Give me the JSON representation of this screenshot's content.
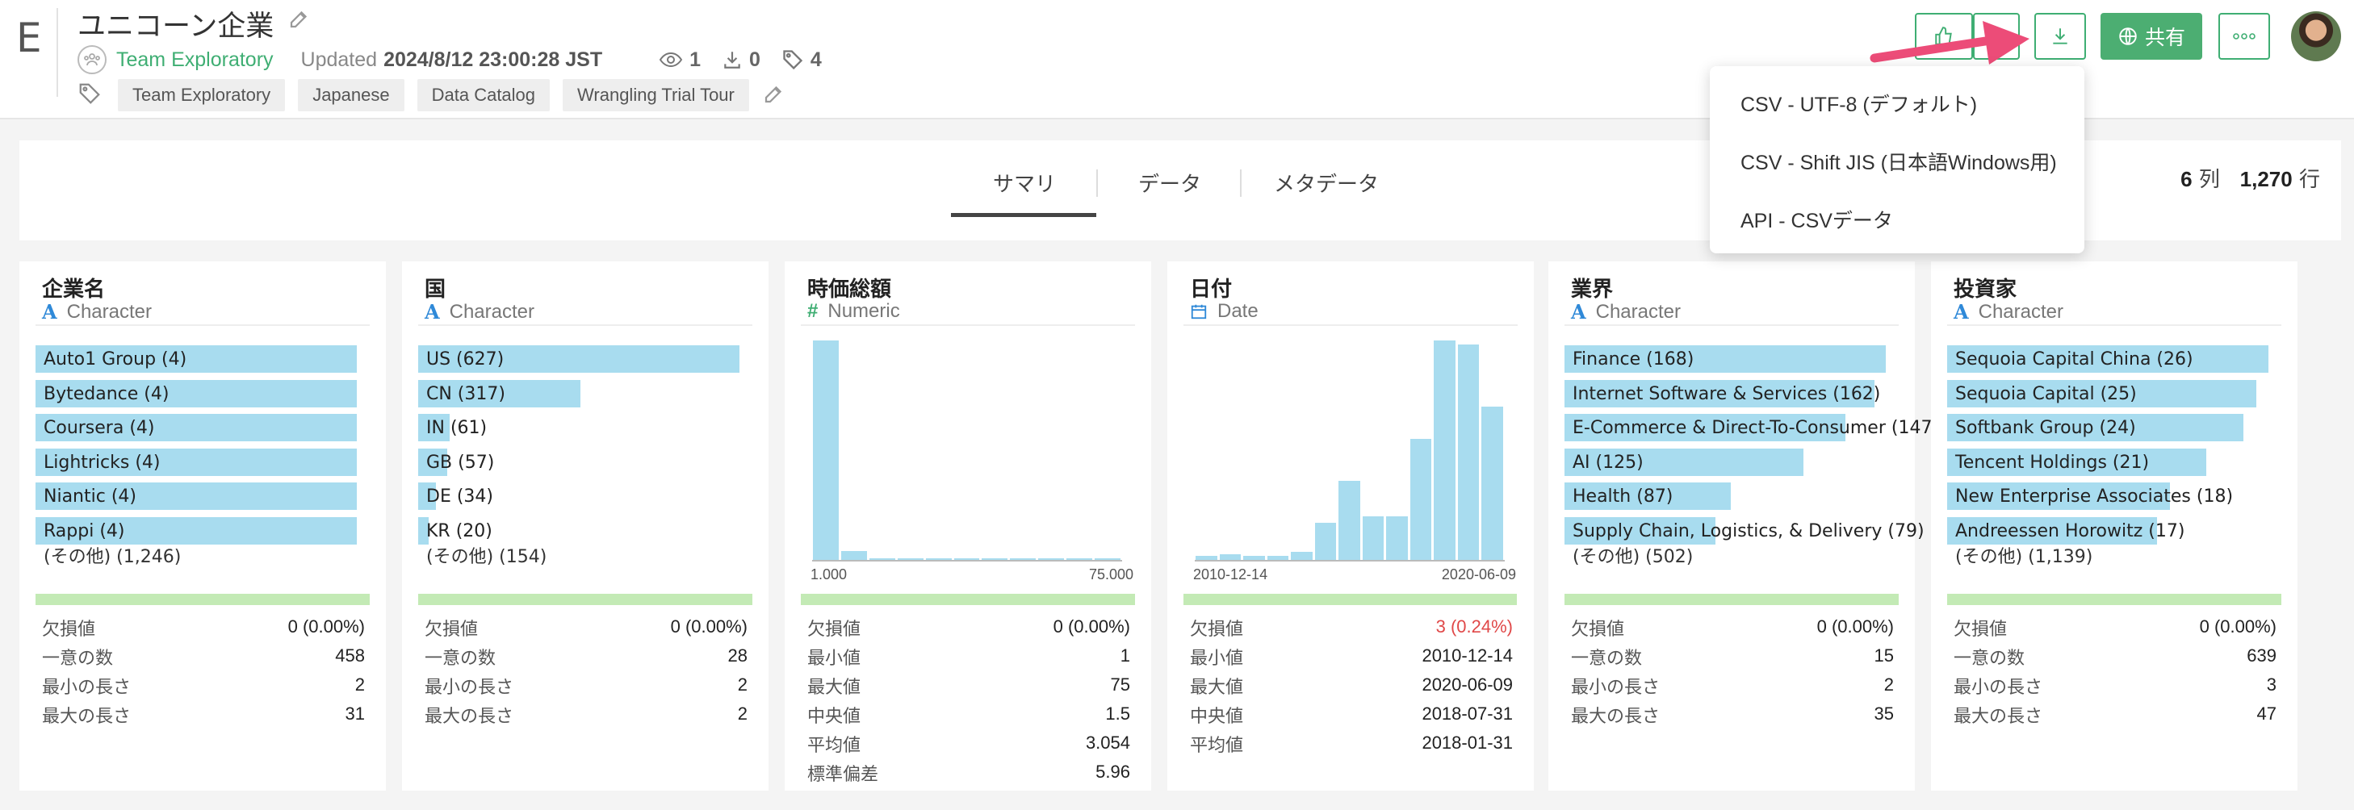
{
  "header": {
    "logo_letter": "E",
    "title": "ユニコーン企業",
    "team": "Team Exploratory",
    "updated_label": "Updated",
    "updated_value": "2024/8/12 23:00:28 JST",
    "views": "1",
    "downloads": "0",
    "tag_count": "4",
    "tags": [
      "Team Exploratory",
      "Japanese",
      "Data Catalog",
      "Wrangling Trial Tour"
    ],
    "share_label": "共有"
  },
  "tabs": [
    {
      "label": "サマリ",
      "active": true
    },
    {
      "label": "データ",
      "active": false
    },
    {
      "label": "メタデータ",
      "active": false
    }
  ],
  "counts": {
    "columns": "6",
    "columns_unit": "列",
    "rows": "1,270",
    "rows_unit": "行"
  },
  "download_menu": {
    "items": [
      "CSV - UTF-8 (デフォルト)",
      "CSV - Shift JIS (日本語Windows用)",
      "API - CSVデータ"
    ]
  },
  "columns": [
    {
      "name": "企業名",
      "type": "Character",
      "type_icon": "character-icon",
      "bars": [
        {
          "label": "Auto1 Group (4)",
          "value": 4
        },
        {
          "label": "Bytedance (4)",
          "value": 4
        },
        {
          "label": "Coursera (4)",
          "value": 4
        },
        {
          "label": "Lightricks (4)",
          "value": 4
        },
        {
          "label": "Niantic (4)",
          "value": 4
        },
        {
          "label": "Rappi (4)",
          "value": 4
        }
      ],
      "bar_max": 4,
      "other": "(その他) (1,246)",
      "quality": 1.0,
      "stats": [
        {
          "label": "欠損値",
          "value": "0 (0.00%)"
        },
        {
          "label": "一意の数",
          "value": "458"
        },
        {
          "label": "最小の長さ",
          "value": "2"
        },
        {
          "label": "最大の長さ",
          "value": "31"
        }
      ]
    },
    {
      "name": "国",
      "type": "Character",
      "type_icon": "character-icon",
      "bars": [
        {
          "label": "US (627)",
          "value": 627
        },
        {
          "label": "CN (317)",
          "value": 317
        },
        {
          "label": "IN (61)",
          "value": 61
        },
        {
          "label": "GB (57)",
          "value": 57
        },
        {
          "label": "DE (34)",
          "value": 34
        },
        {
          "label": "KR (20)",
          "value": 20
        }
      ],
      "bar_max": 627,
      "other": "(その他) (154)",
      "quality": 1.0,
      "stats": [
        {
          "label": "欠損値",
          "value": "0 (0.00%)"
        },
        {
          "label": "一意の数",
          "value": "28"
        },
        {
          "label": "最小の長さ",
          "value": "2"
        },
        {
          "label": "最大の長さ",
          "value": "2"
        }
      ]
    },
    {
      "name": "時価総額",
      "type": "Numeric",
      "type_icon": "numeric-icon",
      "histogram": {
        "values": [
          100,
          4,
          0.6,
          0.5,
          0.4,
          0.4,
          0.4,
          0.3,
          0.3,
          0.3,
          0.3
        ],
        "x_min_label": "1.000",
        "x_max_label": "75.000"
      },
      "quality": 1.0,
      "stats": [
        {
          "label": "欠損値",
          "value": "0 (0.00%)"
        },
        {
          "label": "最小値",
          "value": "1"
        },
        {
          "label": "最大値",
          "value": "75"
        },
        {
          "label": "中央値",
          "value": "1.5"
        },
        {
          "label": "平均値",
          "value": "3.054"
        },
        {
          "label": "標準偏差",
          "value": "5.96"
        }
      ]
    },
    {
      "name": "日付",
      "type": "Date",
      "type_icon": "calendar-icon",
      "histogram": {
        "values": [
          2,
          2.5,
          2,
          2,
          3.5,
          17,
          36,
          20,
          20,
          55,
          100,
          98,
          70
        ],
        "x_min_label": "2010-12-14",
        "x_max_label": "2020-06-09"
      },
      "quality": 0.9976,
      "stats": [
        {
          "label": "欠損値",
          "value": "3 (0.24%)",
          "alert": true
        },
        {
          "label": "最小値",
          "value": "2010-12-14"
        },
        {
          "label": "最大値",
          "value": "2020-06-09"
        },
        {
          "label": "中央値",
          "value": "2018-07-31"
        },
        {
          "label": "平均値",
          "value": "2018-01-31"
        }
      ]
    },
    {
      "name": "業界",
      "type": "Character",
      "type_icon": "character-icon",
      "bars": [
        {
          "label": "Finance (168)",
          "value": 168
        },
        {
          "label": "Internet Software & Services (162)",
          "value": 162
        },
        {
          "label": "E-Commerce & Direct-To-Consumer (147)",
          "value": 147
        },
        {
          "label": "AI (125)",
          "value": 125
        },
        {
          "label": "Health (87)",
          "value": 87
        },
        {
          "label": "Supply Chain, Logistics, & Delivery (79)",
          "value": 79
        }
      ],
      "bar_max": 168,
      "other": "(その他) (502)",
      "quality": 1.0,
      "stats": [
        {
          "label": "欠損値",
          "value": "0 (0.00%)"
        },
        {
          "label": "一意の数",
          "value": "15"
        },
        {
          "label": "最小の長さ",
          "value": "2"
        },
        {
          "label": "最大の長さ",
          "value": "35"
        }
      ]
    },
    {
      "name": "投資家",
      "type": "Character",
      "type_icon": "character-icon",
      "bars": [
        {
          "label": "Sequoia Capital China (26)",
          "value": 26
        },
        {
          "label": "Sequoia Capital (25)",
          "value": 25
        },
        {
          "label": "Softbank Group (24)",
          "value": 24
        },
        {
          "label": "Tencent Holdings (21)",
          "value": 21
        },
        {
          "label": "New Enterprise Associates (18)",
          "value": 18
        },
        {
          "label": "Andreessen Horowitz (17)",
          "value": 17
        }
      ],
      "bar_max": 26,
      "other": "(その他) (1,139)",
      "quality": 1.0,
      "stats": [
        {
          "label": "欠損値",
          "value": "0 (0.00%)"
        },
        {
          "label": "一意の数",
          "value": "639"
        },
        {
          "label": "最小の長さ",
          "value": "3"
        },
        {
          "label": "最大の長さ",
          "value": "47"
        }
      ]
    }
  ]
}
